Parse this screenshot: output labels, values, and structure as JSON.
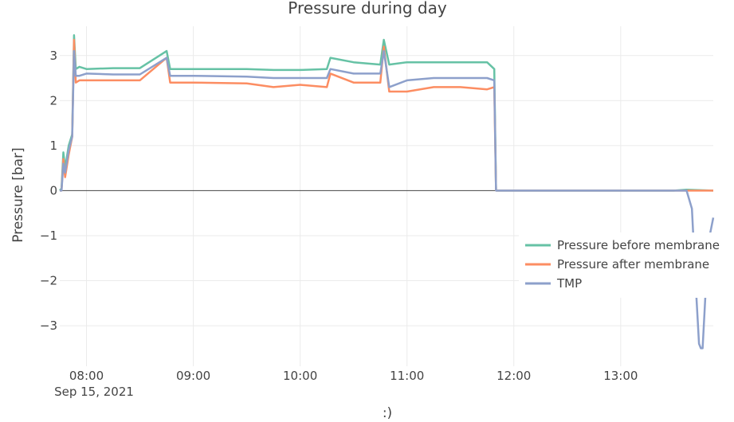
{
  "chart_data": {
    "type": "line",
    "title": "Pressure during day",
    "xlabel": ":)",
    "ylabel": "Pressure [bar]",
    "x_date_annotation": "Sep 15, 2021",
    "x_range": [
      "07:45",
      "13:52"
    ],
    "x_ticks": [
      "08:00",
      "09:00",
      "10:00",
      "11:00",
      "12:00",
      "13:00"
    ],
    "ylim": [
      -3.9,
      3.65
    ],
    "y_ticks": [
      -3,
      -2,
      -1,
      0,
      1,
      2,
      3
    ],
    "y_tick_labels": [
      "−3",
      "−2",
      "−1",
      "0",
      "1",
      "2",
      "3"
    ],
    "grid": true,
    "legend_position": "right",
    "series": [
      {
        "name": "Pressure before membrane",
        "color": "#66c2a5",
        "points": [
          [
            "07:45",
            0
          ],
          [
            "07:46",
            0.05
          ],
          [
            "07:47",
            0.85
          ],
          [
            "07:48",
            0.5
          ],
          [
            "07:50",
            1.0
          ],
          [
            "07:52",
            1.25
          ],
          [
            "07:53",
            3.45
          ],
          [
            "07:54",
            2.7
          ],
          [
            "07:56",
            2.75
          ],
          [
            "08:00",
            2.7
          ],
          [
            "08:15",
            2.72
          ],
          [
            "08:30",
            2.72
          ],
          [
            "08:45",
            3.1
          ],
          [
            "08:47",
            2.7
          ],
          [
            "09:00",
            2.7
          ],
          [
            "09:30",
            2.7
          ],
          [
            "09:45",
            2.68
          ],
          [
            "10:00",
            2.68
          ],
          [
            "10:15",
            2.7
          ],
          [
            "10:17",
            2.95
          ],
          [
            "10:30",
            2.85
          ],
          [
            "10:45",
            2.8
          ],
          [
            "10:47",
            3.35
          ],
          [
            "10:50",
            2.8
          ],
          [
            "11:00",
            2.85
          ],
          [
            "11:15",
            2.85
          ],
          [
            "11:30",
            2.85
          ],
          [
            "11:45",
            2.85
          ],
          [
            "11:49",
            2.7
          ],
          [
            "11:50",
            0
          ],
          [
            "12:00",
            0
          ],
          [
            "13:00",
            0
          ],
          [
            "13:30",
            0
          ],
          [
            "13:37",
            0.02
          ],
          [
            "13:52",
            0
          ]
        ]
      },
      {
        "name": "Pressure after membrane",
        "color": "#fc8d62",
        "points": [
          [
            "07:45",
            0
          ],
          [
            "07:46",
            0
          ],
          [
            "07:47",
            0.7
          ],
          [
            "07:48",
            0.3
          ],
          [
            "07:50",
            0.8
          ],
          [
            "07:52",
            1.2
          ],
          [
            "07:53",
            3.35
          ],
          [
            "07:54",
            2.4
          ],
          [
            "07:56",
            2.45
          ],
          [
            "08:00",
            2.45
          ],
          [
            "08:15",
            2.45
          ],
          [
            "08:30",
            2.45
          ],
          [
            "08:45",
            2.95
          ],
          [
            "08:47",
            2.4
          ],
          [
            "09:00",
            2.4
          ],
          [
            "09:30",
            2.38
          ],
          [
            "09:45",
            2.3
          ],
          [
            "10:00",
            2.35
          ],
          [
            "10:15",
            2.3
          ],
          [
            "10:17",
            2.6
          ],
          [
            "10:30",
            2.4
          ],
          [
            "10:45",
            2.4
          ],
          [
            "10:47",
            3.2
          ],
          [
            "10:50",
            2.2
          ],
          [
            "11:00",
            2.2
          ],
          [
            "11:15",
            2.3
          ],
          [
            "11:30",
            2.3
          ],
          [
            "11:45",
            2.25
          ],
          [
            "11:49",
            2.3
          ],
          [
            "11:50",
            0
          ],
          [
            "12:00",
            0
          ],
          [
            "13:00",
            0
          ],
          [
            "13:30",
            0
          ],
          [
            "13:37",
            0
          ],
          [
            "13:52",
            0
          ]
        ]
      },
      {
        "name": "TMP",
        "color": "#8da0cb",
        "points": [
          [
            "07:45",
            0
          ],
          [
            "07:46",
            0
          ],
          [
            "07:47",
            0.6
          ],
          [
            "07:48",
            0.4
          ],
          [
            "07:50",
            0.9
          ],
          [
            "07:52",
            1.2
          ],
          [
            "07:53",
            3.1
          ],
          [
            "07:54",
            2.55
          ],
          [
            "07:56",
            2.55
          ],
          [
            "08:00",
            2.6
          ],
          [
            "08:15",
            2.58
          ],
          [
            "08:30",
            2.58
          ],
          [
            "08:45",
            2.95
          ],
          [
            "08:47",
            2.55
          ],
          [
            "09:00",
            2.55
          ],
          [
            "09:30",
            2.53
          ],
          [
            "09:45",
            2.5
          ],
          [
            "10:00",
            2.5
          ],
          [
            "10:15",
            2.5
          ],
          [
            "10:17",
            2.7
          ],
          [
            "10:30",
            2.6
          ],
          [
            "10:45",
            2.6
          ],
          [
            "10:47",
            3.1
          ],
          [
            "10:50",
            2.3
          ],
          [
            "11:00",
            2.45
          ],
          [
            "11:15",
            2.5
          ],
          [
            "11:30",
            2.5
          ],
          [
            "11:45",
            2.5
          ],
          [
            "11:49",
            2.45
          ],
          [
            "11:50",
            0
          ],
          [
            "12:00",
            0
          ],
          [
            "13:00",
            0
          ],
          [
            "13:30",
            0
          ],
          [
            "13:37",
            0
          ],
          [
            "13:40",
            -0.4
          ],
          [
            "13:42",
            -2.0
          ],
          [
            "13:44",
            -3.4
          ],
          [
            "13:45",
            -3.5
          ],
          [
            "13:46",
            -3.5
          ],
          [
            "13:48",
            -2.0
          ],
          [
            "13:50",
            -1.0
          ],
          [
            "13:52",
            -0.6
          ]
        ]
      }
    ]
  }
}
